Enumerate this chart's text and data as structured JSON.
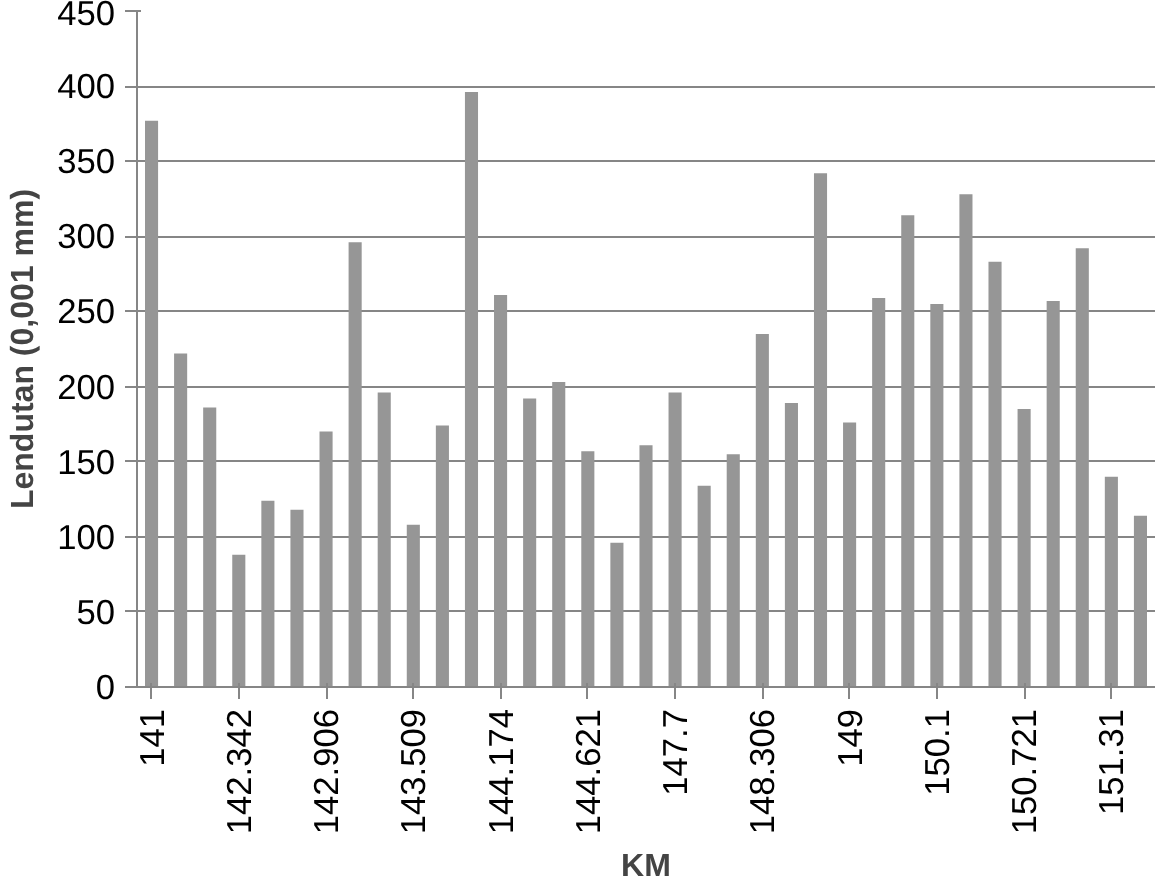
{
  "chart_data": {
    "type": "bar",
    "xlabel": "KM",
    "ylabel": "Lendutan (0,001 mm)",
    "categories": [
      "141",
      null,
      null,
      "142.342",
      null,
      null,
      "142.906",
      null,
      null,
      "143.509",
      null,
      null,
      "144.174",
      null,
      null,
      "144.621",
      null,
      null,
      "147.7",
      null,
      null,
      "148.306",
      null,
      null,
      "149",
      null,
      null,
      "150.1",
      null,
      null,
      "150.721",
      null,
      null,
      "151.31",
      null
    ],
    "values": [
      377,
      222,
      186,
      88,
      124,
      118,
      170,
      296,
      196,
      108,
      174,
      396,
      261,
      192,
      203,
      157,
      96,
      161,
      196,
      134,
      155,
      235,
      189,
      342,
      176,
      259,
      314,
      255,
      328,
      283,
      185,
      257,
      292,
      140,
      114
    ],
    "color": "#969696",
    "ylim": [
      0,
      450
    ],
    "yticks": [
      0,
      50,
      100,
      150,
      200,
      250,
      300,
      350,
      400,
      450
    ],
    "grid": "y"
  }
}
